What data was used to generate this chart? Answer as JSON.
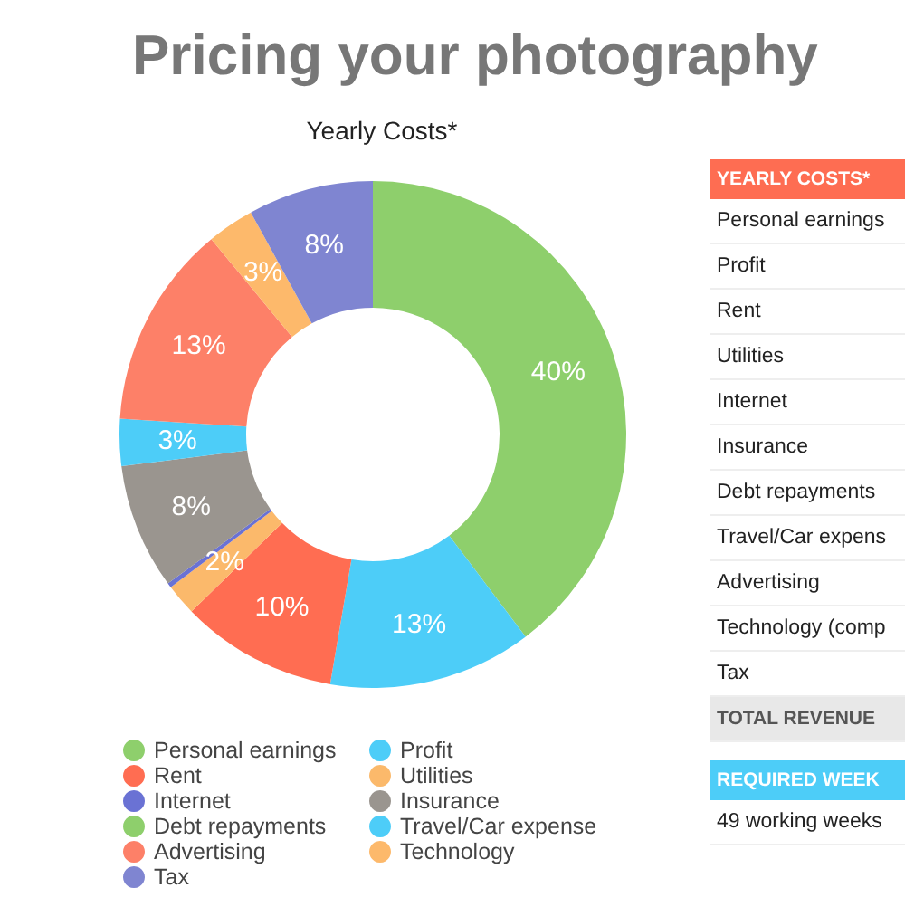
{
  "chart_data": [
    {
      "type": "donut",
      "title": "Pricing your photography",
      "subtitle": "Yearly Costs*",
      "categories": [
        "Personal earnings",
        "Profit",
        "Rent",
        "Utilities",
        "Internet",
        "Insurance",
        "Debt repayments",
        "Travel/Car expense",
        "Advertising",
        "Technology",
        "Tax"
      ],
      "values": [
        39.7,
        13,
        10,
        2,
        0.3,
        8,
        0,
        3,
        13,
        3,
        8
      ],
      "value_labels": [
        "40%",
        "13%",
        "10%",
        "2%",
        null,
        "8%",
        null,
        "3%",
        "13%",
        "3%",
        "8%"
      ],
      "colors": [
        "#8ecf6c",
        "#4dcdf8",
        "#ff6d52",
        "#fbb96b",
        "#6a72d4",
        "#9a958f",
        "#8ecf6c",
        "#4dcdf8",
        "#fd8068",
        "#fdb96b",
        "#7f85d1"
      ],
      "legend": "bottom"
    },
    {
      "type": "other",
      "title": "YEARLY COSTS*",
      "annotations": [
        "Personal earnings",
        "Profit",
        "Rent",
        "Utilities",
        "Internet",
        "Insurance",
        "Debt repayments",
        "Travel/Car expens",
        "Advertising",
        "Technology (comp",
        "Tax",
        "TOTAL REVENUE"
      ]
    },
    {
      "type": "other",
      "title": "REQUIRED WEEK",
      "annotations": [
        "49 working weeks"
      ]
    }
  ]
}
